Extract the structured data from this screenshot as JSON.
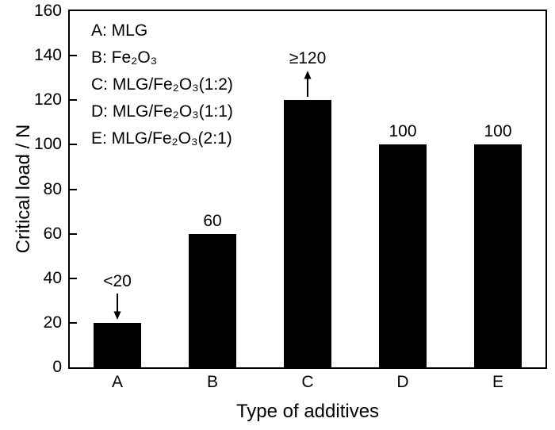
{
  "chart_data": {
    "type": "bar",
    "title": "",
    "xlabel": "Type of additives",
    "ylabel": "Critical load / N",
    "categories": [
      "A",
      "B",
      "C",
      "D",
      "E"
    ],
    "values": [
      20,
      60,
      120,
      100,
      100
    ],
    "bar_labels": [
      "<20",
      "60",
      "≥120",
      "100",
      "100"
    ],
    "annotation_arrows": [
      {
        "category_index": 0,
        "direction": "down"
      },
      {
        "category_index": 2,
        "direction": "up"
      }
    ],
    "legend_entries": [
      "A: MLG",
      "B: Fe₂O₃",
      "C: MLG/Fe₂O₃(1:2)",
      "D: MLG/Fe₂O₃(1:1)",
      "E: MLG/Fe₂O₃(2:1)"
    ],
    "legend_position": "top-left-inside",
    "ylim": [
      0,
      160
    ],
    "yticks": [
      0,
      20,
      40,
      60,
      80,
      100,
      120,
      140,
      160
    ],
    "grid": false,
    "bar_color": "#000000",
    "axis_color": "#000000",
    "text_color": "#000000",
    "background": "#ffffff"
  }
}
